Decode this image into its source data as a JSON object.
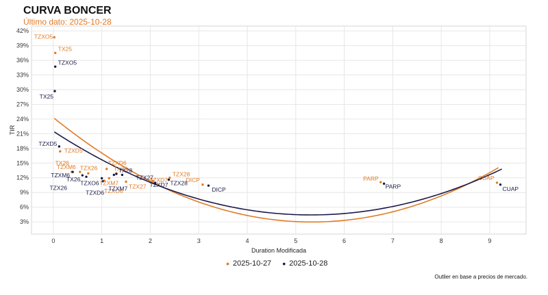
{
  "title": "CURVA BONCER",
  "subtitle": "Último dato: 2025-10-28",
  "footnote": "Outlier en base a precios de mercado.",
  "colors": {
    "series_prev": "#e07b24",
    "series_last": "#1a1a4a",
    "grid": "#e6e6e6"
  },
  "chart_data": {
    "type": "scatter",
    "xlabel": "Duration Modificada",
    "ylabel": "TIR",
    "xlim": [
      -0.45,
      9.75
    ],
    "ylim": [
      0.5,
      43
    ],
    "x_ticks": [
      0,
      1,
      2,
      3,
      4,
      5,
      6,
      7,
      8,
      9
    ],
    "y_ticks": [
      3,
      6,
      9,
      12,
      15,
      18,
      21,
      24,
      27,
      30,
      33,
      36,
      39,
      42
    ],
    "y_tick_suffix": "%",
    "grid": true,
    "legend": "bottom-center",
    "series": [
      {
        "name": "2025-10-27",
        "fit": {
          "a": 0.75,
          "b": -8.0,
          "c": 24.3
        },
        "fit_range": [
          0.02,
          9.18
        ],
        "points": [
          {
            "label": "TZXO5",
            "x": 0.02,
            "y": 40.7
          },
          {
            "label": "TX25",
            "x": 0.04,
            "y": 37.5
          },
          {
            "label": "TZXD5",
            "x": 0.14,
            "y": 17.4
          },
          {
            "label": "TX26",
            "x": 0.38,
            "y": 13.2
          },
          {
            "label": "TZXM6",
            "x": 0.55,
            "y": 13.2
          },
          {
            "label": "TZX26",
            "x": 0.72,
            "y": 12.9
          },
          {
            "label": "TZXD6",
            "x": 1.1,
            "y": 13.8
          },
          {
            "label": "TX28",
            "x": 1.3,
            "y": 12.9
          },
          {
            "label": "TZXM7",
            "x": 1.15,
            "y": 11.9
          },
          {
            "label": "TZXO6",
            "x": 1.05,
            "y": 11.4
          },
          {
            "label": "TZX27",
            "x": 1.5,
            "y": 11.2
          },
          {
            "label": "TZXD7",
            "x": 2.05,
            "y": 11.4
          },
          {
            "label": "TZX28",
            "x": 2.4,
            "y": 12.0
          },
          {
            "label": "DICP",
            "x": 3.08,
            "y": 10.6
          },
          {
            "label": "PARP",
            "x": 6.75,
            "y": 11.1
          },
          {
            "label": "CUAP",
            "x": 9.15,
            "y": 11.0
          }
        ]
      },
      {
        "name": "2025-10-28",
        "fit": {
          "a": 0.605,
          "b": -6.43,
          "c": 21.5
        },
        "fit_range": [
          0.02,
          9.25
        ],
        "points": [
          {
            "label": "TZXO5",
            "x": 0.04,
            "y": 34.7
          },
          {
            "label": "TX25",
            "x": 0.03,
            "y": 29.7
          },
          {
            "label": "TZXD5",
            "x": 0.12,
            "y": 18.4
          },
          {
            "label": "TZXM6",
            "x": 0.4,
            "y": 13.2
          },
          {
            "label": "TX26",
            "x": 0.6,
            "y": 12.5
          },
          {
            "label": "TZX26",
            "x": 0.68,
            "y": 12.2
          },
          {
            "label": "TZXO6",
            "x": 1.0,
            "y": 11.9
          },
          {
            "label": "TZXD6",
            "x": 1.02,
            "y": 11.3
          },
          {
            "label": "TZXM7",
            "x": 1.25,
            "y": 12.6
          },
          {
            "label": "TX28",
            "x": 1.3,
            "y": 12.8
          },
          {
            "label": "TZX27",
            "x": 1.42,
            "y": 12.6
          },
          {
            "label": "TZXD7",
            "x": 2.1,
            "y": 11.0
          },
          {
            "label": "TZX28",
            "x": 2.38,
            "y": 11.6
          },
          {
            "label": "DICP",
            "x": 3.2,
            "y": 10.4
          },
          {
            "label": "PARP",
            "x": 6.82,
            "y": 10.8
          },
          {
            "label": "CUAP",
            "x": 9.22,
            "y": 10.6
          }
        ]
      }
    ]
  }
}
